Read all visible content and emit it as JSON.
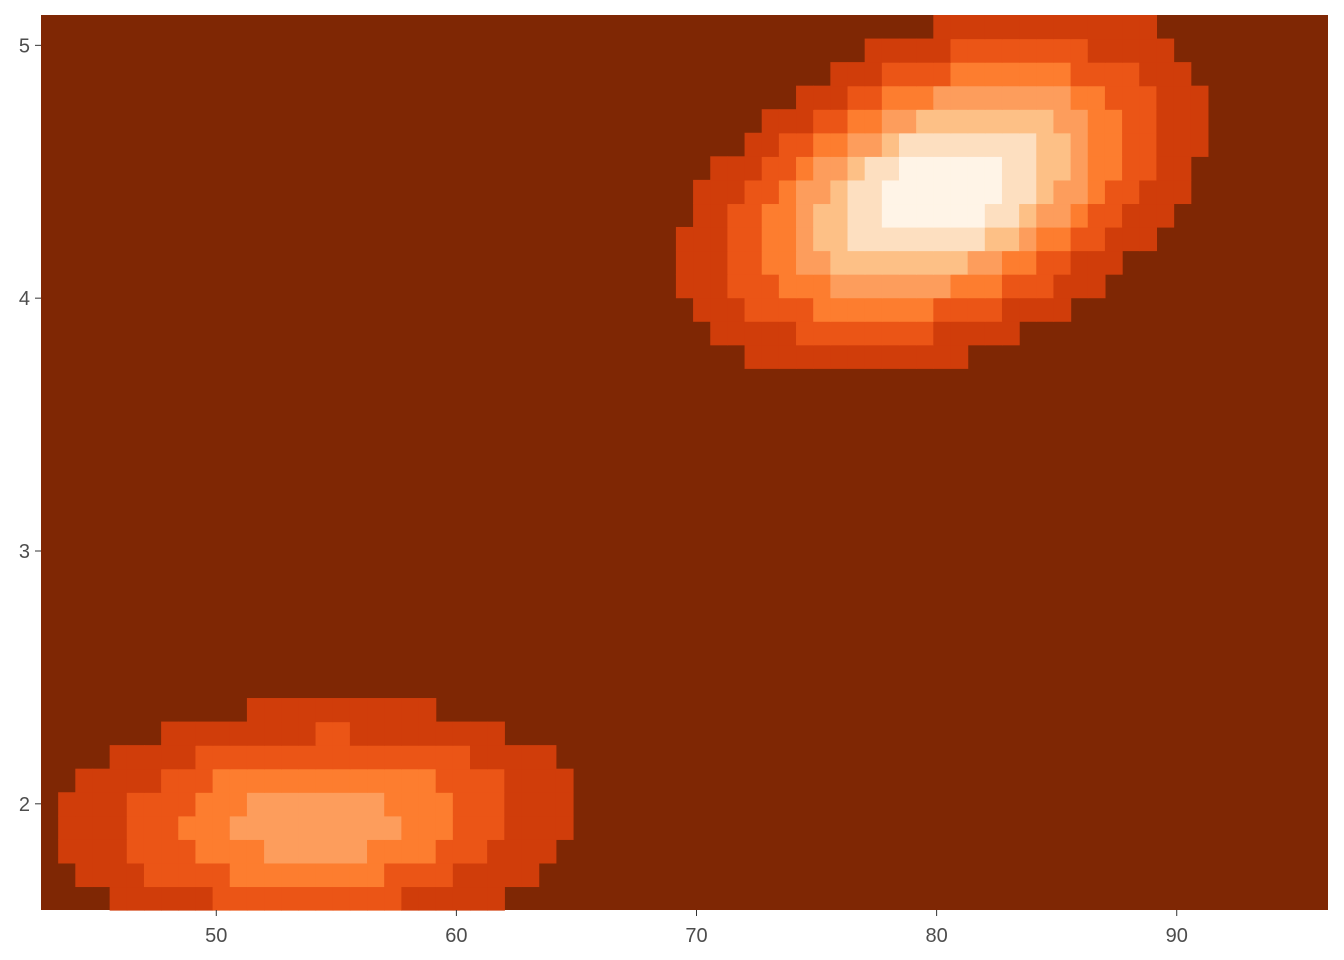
{
  "chart_data": {
    "type": "heatmap",
    "title": "",
    "xlabel": "",
    "ylabel": "",
    "xlim": [
      42.7,
      96.3
    ],
    "ylim": [
      1.58,
      5.12
    ],
    "x_ticks": [
      50,
      60,
      70,
      80,
      90
    ],
    "y_ticks": [
      2,
      3,
      4,
      5
    ],
    "x_tick_labels": [
      "50",
      "60",
      "70",
      "80",
      "90"
    ],
    "y_tick_labels": [
      "2",
      "3",
      "4",
      "5"
    ],
    "grid_cells": {
      "nx": 75,
      "ny": 38
    },
    "levels": 8,
    "palette": [
      "#7f2704",
      "#d03d0a",
      "#eb5516",
      "#fd7d2f",
      "#fd9d5c",
      "#fdc086",
      "#fddfc0",
      "#fff4e7"
    ],
    "density_components": [
      {
        "cx": 80.3,
        "cy": 4.42,
        "sx": 5.4,
        "sy": 0.36,
        "rho": 0.4,
        "weight": 1.0
      },
      {
        "cx": 54.2,
        "cy": 1.93,
        "sx": 6.2,
        "sy": 0.27,
        "rho": 0.1,
        "weight": 0.58
      }
    ],
    "legend": "none"
  }
}
